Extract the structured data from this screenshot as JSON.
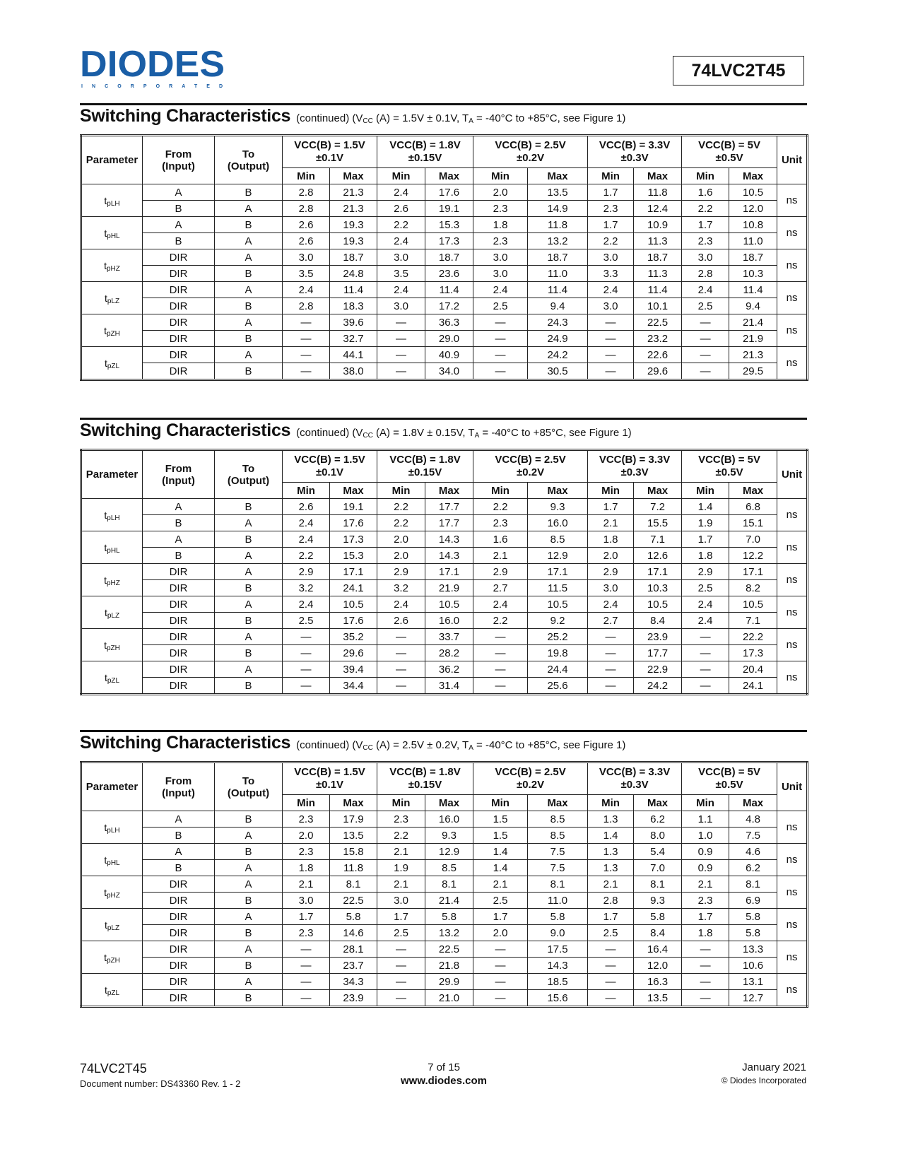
{
  "header": {
    "logo_text": "DIODES",
    "logo_sub": "INCORPORATED",
    "part_number": "74LVC2T45",
    "logo_color": "#1a5ea6"
  },
  "column_headers": {
    "parameter": "Parameter",
    "from": "From",
    "from2": "(Input)",
    "to": "To",
    "to2": "(Output)",
    "unit": "Unit",
    "min": "Min",
    "max": "Max",
    "groups": [
      {
        "l1": "VCC(B) = 1.5V",
        "l2": "±0.1V"
      },
      {
        "l1": "VCC(B) = 1.8V",
        "l2": "±0.15V"
      },
      {
        "l1": "VCC(B) = 2.5V",
        "l2": "±0.2V"
      },
      {
        "l1": "VCC(B) = 3.3V",
        "l2": "±0.3V"
      },
      {
        "l1": "VCC(B) = 5V",
        "l2": "±0.5V"
      }
    ]
  },
  "tables": [
    {
      "title": "Switching Characteristics",
      "subtitle": {
        "a": "(continued) (V",
        "b": "CC",
        "c": " (A) = 1.5V ± 0.1V, T",
        "d": "A",
        "e": " = -40°C to +85°C, see Figure 1)"
      },
      "params": [
        {
          "t": "t",
          "s": "pLH"
        },
        {
          "t": "t",
          "s": "pHL"
        },
        {
          "t": "t",
          "s": "pHZ"
        },
        {
          "t": "t",
          "s": "pLZ"
        },
        {
          "t": "t",
          "s": "pZH"
        },
        {
          "t": "t",
          "s": "pZL"
        }
      ],
      "unit": "ns",
      "rows": [
        [
          "A",
          "B",
          "2.8",
          "21.3",
          "2.4",
          "17.6",
          "2.0",
          "13.5",
          "1.7",
          "11.8",
          "1.6",
          "10.5"
        ],
        [
          "B",
          "A",
          "2.8",
          "21.3",
          "2.6",
          "19.1",
          "2.3",
          "14.9",
          "2.3",
          "12.4",
          "2.2",
          "12.0"
        ],
        [
          "A",
          "B",
          "2.6",
          "19.3",
          "2.2",
          "15.3",
          "1.8",
          "11.8",
          "1.7",
          "10.9",
          "1.7",
          "10.8"
        ],
        [
          "B",
          "A",
          "2.6",
          "19.3",
          "2.4",
          "17.3",
          "2.3",
          "13.2",
          "2.2",
          "11.3",
          "2.3",
          "11.0"
        ],
        [
          "DIR",
          "A",
          "3.0",
          "18.7",
          "3.0",
          "18.7",
          "3.0",
          "18.7",
          "3.0",
          "18.7",
          "3.0",
          "18.7"
        ],
        [
          "DIR",
          "B",
          "3.5",
          "24.8",
          "3.5",
          "23.6",
          "3.0",
          "11.0",
          "3.3",
          "11.3",
          "2.8",
          "10.3"
        ],
        [
          "DIR",
          "A",
          "2.4",
          "11.4",
          "2.4",
          "11.4",
          "2.4",
          "11.4",
          "2.4",
          "11.4",
          "2.4",
          "11.4"
        ],
        [
          "DIR",
          "B",
          "2.8",
          "18.3",
          "3.0",
          "17.2",
          "2.5",
          "9.4",
          "3.0",
          "10.1",
          "2.5",
          "9.4"
        ],
        [
          "DIR",
          "A",
          "—",
          "39.6",
          "—",
          "36.3",
          "—",
          "24.3",
          "—",
          "22.5",
          "—",
          "21.4"
        ],
        [
          "DIR",
          "B",
          "—",
          "32.7",
          "—",
          "29.0",
          "—",
          "24.9",
          "—",
          "23.2",
          "—",
          "21.9"
        ],
        [
          "DIR",
          "A",
          "—",
          "44.1",
          "—",
          "40.9",
          "—",
          "24.2",
          "—",
          "22.6",
          "—",
          "21.3"
        ],
        [
          "DIR",
          "B",
          "—",
          "38.0",
          "—",
          "34.0",
          "—",
          "30.5",
          "—",
          "29.6",
          "—",
          "29.5"
        ]
      ]
    },
    {
      "title": "Switching Characteristics",
      "subtitle": {
        "a": "(continued) (V",
        "b": "CC",
        "c": " (A) = 1.8V ± 0.15V, T",
        "d": "A",
        "e": " = -40°C to +85°C, see Figure 1)"
      },
      "params": [
        {
          "t": "t",
          "s": "pLH"
        },
        {
          "t": "t",
          "s": "pHL"
        },
        {
          "t": "t",
          "s": "pHZ"
        },
        {
          "t": "t",
          "s": "pLZ"
        },
        {
          "t": "t",
          "s": "pZH"
        },
        {
          "t": "t",
          "s": "pZL"
        }
      ],
      "unit": "ns",
      "rows": [
        [
          "A",
          "B",
          "2.6",
          "19.1",
          "2.2",
          "17.7",
          "2.2",
          "9.3",
          "1.7",
          "7.2",
          "1.4",
          "6.8"
        ],
        [
          "B",
          "A",
          "2.4",
          "17.6",
          "2.2",
          "17.7",
          "2.3",
          "16.0",
          "2.1",
          "15.5",
          "1.9",
          "15.1"
        ],
        [
          "A",
          "B",
          "2.4",
          "17.3",
          "2.0",
          "14.3",
          "1.6",
          "8.5",
          "1.8",
          "7.1",
          "1.7",
          "7.0"
        ],
        [
          "B",
          "A",
          "2.2",
          "15.3",
          "2.0",
          "14.3",
          "2.1",
          "12.9",
          "2.0",
          "12.6",
          "1.8",
          "12.2"
        ],
        [
          "DIR",
          "A",
          "2.9",
          "17.1",
          "2.9",
          "17.1",
          "2.9",
          "17.1",
          "2.9",
          "17.1",
          "2.9",
          "17.1"
        ],
        [
          "DIR",
          "B",
          "3.2",
          "24.1",
          "3.2",
          "21.9",
          "2.7",
          "11.5",
          "3.0",
          "10.3",
          "2.5",
          "8.2"
        ],
        [
          "DIR",
          "A",
          "2.4",
          "10.5",
          "2.4",
          "10.5",
          "2.4",
          "10.5",
          "2.4",
          "10.5",
          "2.4",
          "10.5"
        ],
        [
          "DIR",
          "B",
          "2.5",
          "17.6",
          "2.6",
          "16.0",
          "2.2",
          "9.2",
          "2.7",
          "8.4",
          "2.4",
          "7.1"
        ],
        [
          "DIR",
          "A",
          "—",
          "35.2",
          "—",
          "33.7",
          "—",
          "25.2",
          "—",
          "23.9",
          "—",
          "22.2"
        ],
        [
          "DIR",
          "B",
          "—",
          "29.6",
          "—",
          "28.2",
          "—",
          "19.8",
          "—",
          "17.7",
          "—",
          "17.3"
        ],
        [
          "DIR",
          "A",
          "—",
          "39.4",
          "—",
          "36.2",
          "—",
          "24.4",
          "—",
          "22.9",
          "—",
          "20.4"
        ],
        [
          "DIR",
          "B",
          "—",
          "34.4",
          "—",
          "31.4",
          "—",
          "25.6",
          "—",
          "24.2",
          "—",
          "24.1"
        ]
      ]
    },
    {
      "title": "Switching Characteristics",
      "subtitle": {
        "a": "(continued) (V",
        "b": "CC",
        "c": " (A) = 2.5V ± 0.2V, T",
        "d": "A",
        "e": " = -40°C to +85°C, see Figure 1)"
      },
      "params": [
        {
          "t": "t",
          "s": "pLH"
        },
        {
          "t": "t",
          "s": "pHL"
        },
        {
          "t": "t",
          "s": "pHZ"
        },
        {
          "t": "t",
          "s": "pLZ"
        },
        {
          "t": "t",
          "s": "pZH"
        },
        {
          "t": "t",
          "s": "pZL"
        }
      ],
      "unit": "ns",
      "rows": [
        [
          "A",
          "B",
          "2.3",
          "17.9",
          "2.3",
          "16.0",
          "1.5",
          "8.5",
          "1.3",
          "6.2",
          "1.1",
          "4.8"
        ],
        [
          "B",
          "A",
          "2.0",
          "13.5",
          "2.2",
          "9.3",
          "1.5",
          "8.5",
          "1.4",
          "8.0",
          "1.0",
          "7.5"
        ],
        [
          "A",
          "B",
          "2.3",
          "15.8",
          "2.1",
          "12.9",
          "1.4",
          "7.5",
          "1.3",
          "5.4",
          "0.9",
          "4.6"
        ],
        [
          "B",
          "A",
          "1.8",
          "11.8",
          "1.9",
          "8.5",
          "1.4",
          "7.5",
          "1.3",
          "7.0",
          "0.9",
          "6.2"
        ],
        [
          "DIR",
          "A",
          "2.1",
          "8.1",
          "2.1",
          "8.1",
          "2.1",
          "8.1",
          "2.1",
          "8.1",
          "2.1",
          "8.1"
        ],
        [
          "DIR",
          "B",
          "3.0",
          "22.5",
          "3.0",
          "21.4",
          "2.5",
          "11.0",
          "2.8",
          "9.3",
          "2.3",
          "6.9"
        ],
        [
          "DIR",
          "A",
          "1.7",
          "5.8",
          "1.7",
          "5.8",
          "1.7",
          "5.8",
          "1.7",
          "5.8",
          "1.7",
          "5.8"
        ],
        [
          "DIR",
          "B",
          "2.3",
          "14.6",
          "2.5",
          "13.2",
          "2.0",
          "9.0",
          "2.5",
          "8.4",
          "1.8",
          "5.8"
        ],
        [
          "DIR",
          "A",
          "—",
          "28.1",
          "—",
          "22.5",
          "—",
          "17.5",
          "—",
          "16.4",
          "—",
          "13.3"
        ],
        [
          "DIR",
          "B",
          "—",
          "23.7",
          "—",
          "21.8",
          "—",
          "14.3",
          "—",
          "12.0",
          "—",
          "10.6"
        ],
        [
          "DIR",
          "A",
          "—",
          "34.3",
          "—",
          "29.9",
          "—",
          "18.5",
          "—",
          "16.3",
          "—",
          "13.1"
        ],
        [
          "DIR",
          "B",
          "—",
          "23.9",
          "—",
          "21.0",
          "—",
          "15.6",
          "—",
          "13.5",
          "—",
          "12.7"
        ]
      ]
    }
  ],
  "footer": {
    "part": "74LVC2T45",
    "doc": "Document number: DS43360 Rev. 1 - 2",
    "page": "7 of 15",
    "url": "www.diodes.com",
    "date": "January 2021",
    "copyright": "© Diodes Incorporated"
  }
}
